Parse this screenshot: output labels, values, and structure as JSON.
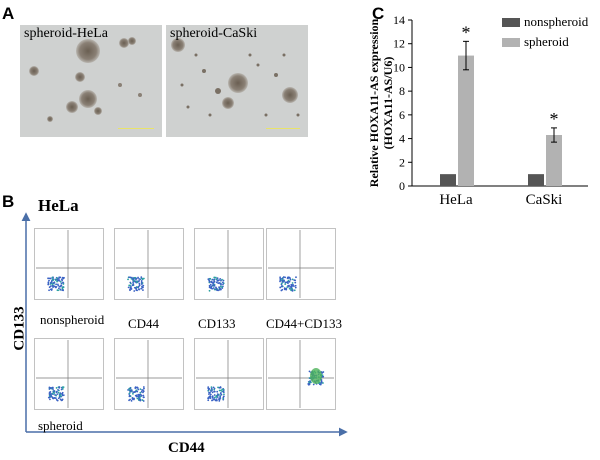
{
  "panel_a": {
    "letter": "A",
    "images": [
      {
        "label": "spheroid-HeLa"
      },
      {
        "label": "spheroid-CaSki"
      }
    ]
  },
  "panel_b": {
    "letter": "B",
    "cell_line": "HeLa",
    "y_axis": "CD133",
    "x_axis": "CD44",
    "column_labels": [
      "nonspheroid",
      "CD44",
      "CD133",
      "CD44+CD133"
    ],
    "bottom_row_label": "spheroid"
  },
  "panel_c": {
    "letter": "C"
  },
  "chart_data": {
    "type": "bar",
    "categories": [
      "HeLa",
      "CaSki"
    ],
    "series": [
      {
        "name": "nonspheroid",
        "values": [
          1.0,
          1.0
        ],
        "errors": [
          0,
          0
        ],
        "color": "#555555"
      },
      {
        "name": "spheroid",
        "values": [
          11.0,
          4.3
        ],
        "errors": [
          1.2,
          0.6
        ],
        "color": "#b2b2b2"
      }
    ],
    "ylabel_line1": "Relative HOXA11-AS expression",
    "ylabel_line2": "(HOXA11-AS/U6)",
    "ylim": [
      0,
      14
    ],
    "yticks": [
      0,
      2,
      4,
      6,
      8,
      10,
      12,
      14
    ],
    "annotations": [
      "*",
      "*"
    ],
    "legend_placement": "top-right",
    "grid": false
  }
}
